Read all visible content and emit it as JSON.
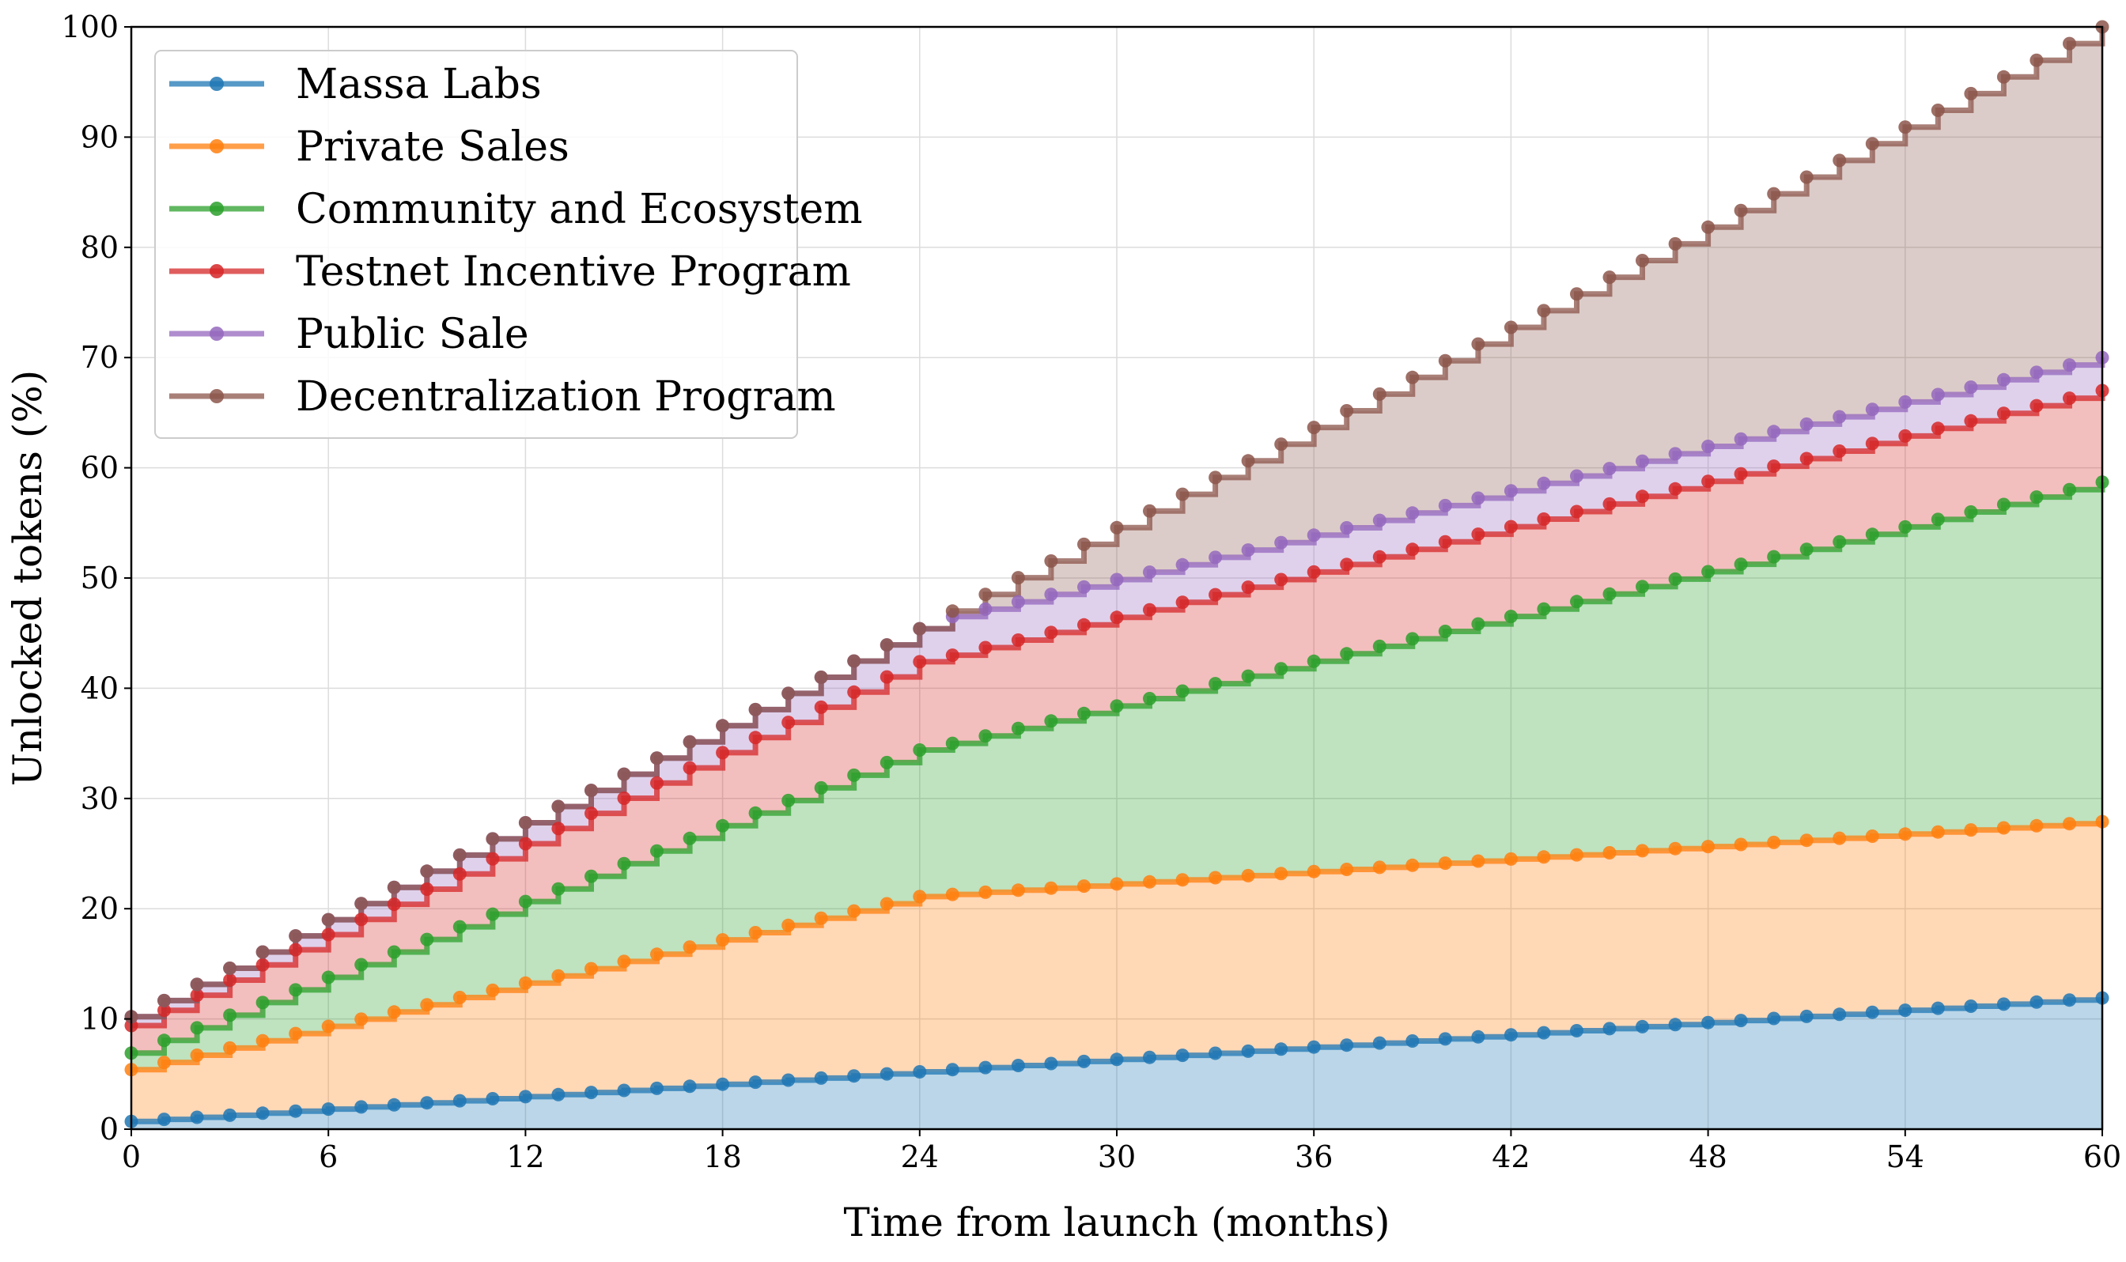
{
  "chart_data": {
    "type": "area",
    "stacked": true,
    "step": true,
    "xlabel": "Time from launch (months)",
    "ylabel": "Unlocked tokens (%)",
    "xlim": [
      0,
      60
    ],
    "ylim": [
      0,
      100
    ],
    "xticks": [
      0,
      6,
      12,
      18,
      24,
      30,
      36,
      42,
      48,
      54,
      60
    ],
    "yticks": [
      0,
      10,
      20,
      30,
      40,
      50,
      60,
      70,
      80,
      90,
      100
    ],
    "grid": true,
    "legend_position": "upper-left",
    "fill_alpha": 0.3,
    "marker": "circle",
    "cumulative_knots": {
      "months": [
        0,
        24,
        25,
        60
      ],
      "series": [
        {
          "name": "Massa Labs",
          "color": "#1f77b4",
          "values": [
            0.7,
            5.2,
            5.4,
            11.9
          ]
        },
        {
          "name": "Private Sales",
          "color": "#ff7f0e",
          "values": [
            5.4,
            21.1,
            21.3,
            27.9
          ]
        },
        {
          "name": "Community and Ecosystem",
          "color": "#2ca02c",
          "values": [
            6.9,
            34.4,
            35.0,
            58.7
          ]
        },
        {
          "name": "Testnet Incentive Program",
          "color": "#d62728",
          "values": [
            9.4,
            42.4,
            43.0,
            67.0
          ]
        },
        {
          "name": "Public Sale",
          "color": "#9467bd",
          "values": [
            10.2,
            45.4,
            46.5,
            70.0
          ]
        },
        {
          "name": "Decentralization Program",
          "color": "#8c564b",
          "values": [
            10.2,
            45.4,
            47.0,
            100.0
          ]
        }
      ]
    }
  }
}
